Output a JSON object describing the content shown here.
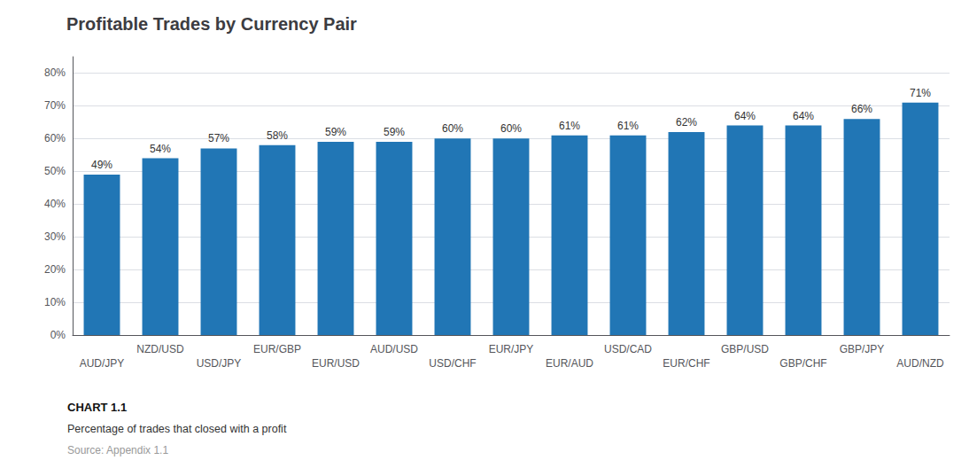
{
  "chart_data": {
    "type": "bar",
    "title": "Profitable Trades by Currency Pair",
    "categories": [
      "AUD/JPY",
      "NZD/USD",
      "USD/JPY",
      "EUR/GBP",
      "EUR/USD",
      "AUD/USD",
      "USD/CHF",
      "EUR/JPY",
      "EUR/AUD",
      "USD/CAD",
      "EUR/CHF",
      "GBP/USD",
      "GBP/CHF",
      "GBP/JPY",
      "AUD/NZD"
    ],
    "values": [
      0.49,
      0.54,
      0.57,
      0.58,
      0.59,
      0.59,
      0.6,
      0.6,
      0.61,
      0.61,
      0.62,
      0.64,
      0.64,
      0.66,
      0.71
    ],
    "value_labels": [
      "49%",
      "54%",
      "57%",
      "58%",
      "59%",
      "59%",
      "60%",
      "60%",
      "61%",
      "61%",
      "62%",
      "64%",
      "64%",
      "66%",
      "71%"
    ],
    "data_labels": true,
    "color": "#2176b5",
    "ylim": [
      0,
      0.85
    ],
    "yticks": [
      {
        "value": 0.0,
        "label": "0%"
      },
      {
        "value": 0.1,
        "label": "10%"
      },
      {
        "value": 0.2,
        "label": "20%"
      },
      {
        "value": 0.3,
        "label": "30%"
      },
      {
        "value": 0.4,
        "label": "40%"
      },
      {
        "value": 0.5,
        "label": "50%"
      },
      {
        "value": 0.6,
        "label": "60%"
      },
      {
        "value": 0.7,
        "label": "70%"
      },
      {
        "value": 0.8,
        "label": "80%"
      }
    ],
    "grid": true,
    "annotations": [
      "CHART 1.1",
      "Percentage of trades that closed with a profit",
      "Source: Appendix 1.1"
    ]
  }
}
